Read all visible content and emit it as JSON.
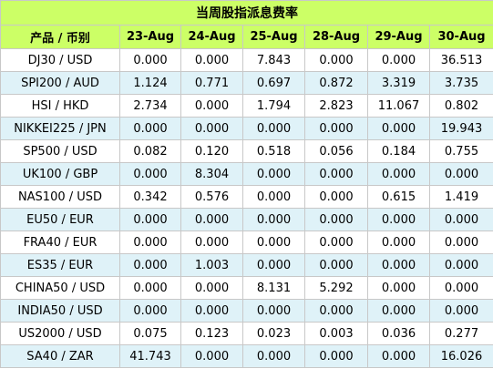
{
  "title": "当周股指派息费率",
  "headers": [
    "产品 / 币别",
    "23-Aug",
    "24-Aug",
    "25-Aug",
    "28-Aug",
    "29-Aug",
    "30-Aug"
  ],
  "rows": [
    [
      "DJ30 / USD",
      "0.000",
      "0.000",
      "7.843",
      "0.000",
      "0.000",
      "36.513"
    ],
    [
      "SPI200 / AUD",
      "1.124",
      "0.771",
      "0.697",
      "0.872",
      "3.319",
      "3.735"
    ],
    [
      "HSI / HKD",
      "2.734",
      "0.000",
      "1.794",
      "2.823",
      "11.067",
      "0.802"
    ],
    [
      "NIKKEI225 / JPN",
      "0.000",
      "0.000",
      "0.000",
      "0.000",
      "0.000",
      "19.943"
    ],
    [
      "SP500 / USD",
      "0.082",
      "0.120",
      "0.518",
      "0.056",
      "0.184",
      "0.755"
    ],
    [
      "UK100 / GBP",
      "0.000",
      "8.304",
      "0.000",
      "0.000",
      "0.000",
      "0.000"
    ],
    [
      "NAS100 / USD",
      "0.342",
      "0.576",
      "0.000",
      "0.000",
      "0.615",
      "1.419"
    ],
    [
      "EU50 / EUR",
      "0.000",
      "0.000",
      "0.000",
      "0.000",
      "0.000",
      "0.000"
    ],
    [
      "FRA40 / EUR",
      "0.000",
      "0.000",
      "0.000",
      "0.000",
      "0.000",
      "0.000"
    ],
    [
      "ES35 / EUR",
      "0.000",
      "1.003",
      "0.000",
      "0.000",
      "0.000",
      "0.000"
    ],
    [
      "CHINA50 / USD",
      "0.000",
      "0.000",
      "8.131",
      "5.292",
      "0.000",
      "0.000"
    ],
    [
      "INDIA50 / USD",
      "0.000",
      "0.000",
      "0.000",
      "0.000",
      "0.000",
      "0.000"
    ],
    [
      "US2000 / USD",
      "0.075",
      "0.123",
      "0.023",
      "0.003",
      "0.036",
      "0.277"
    ],
    [
      "SA40 / ZAR",
      "41.743",
      "0.000",
      "0.000",
      "0.000",
      "0.000",
      "16.026"
    ]
  ]
}
